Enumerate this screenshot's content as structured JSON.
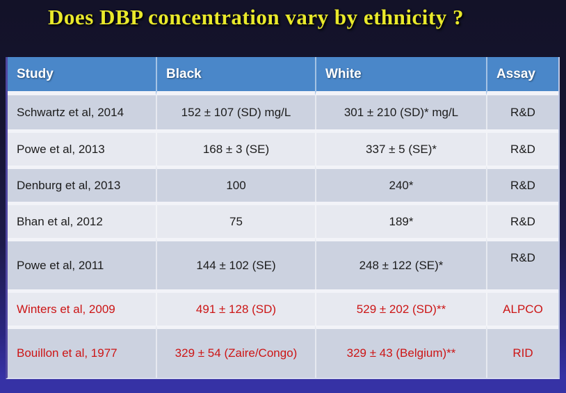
{
  "title": "Does DBP concentration vary by ethnicity ?",
  "table": {
    "headers": [
      "Study",
      "Black",
      "White",
      "Assay"
    ],
    "rows": [
      {
        "study": "Schwartz et al, 2014",
        "black": "152 ± 107 (SD) mg/L",
        "white": "301 ± 210 (SD)* mg/L",
        "assay": "R&D",
        "highlighted": false
      },
      {
        "study": "Powe et al, 2013",
        "black": "168 ± 3 (SE)",
        "white": "337 ± 5 (SE)*",
        "assay": "R&D",
        "highlighted": false
      },
      {
        "study": "Denburg et al, 2013",
        "black": "100",
        "white": "240*",
        "assay": "R&D",
        "highlighted": false
      },
      {
        "study": "Bhan et al, 2012",
        "black": "75",
        "white": "189*",
        "assay": "R&D",
        "highlighted": false
      },
      {
        "study": "Powe et al, 2011",
        "black": "144 ± 102 (SE)",
        "white": "248 ± 122 (SE)*",
        "assay": "R&D",
        "highlighted": false
      },
      {
        "study": "Winters et al, 2009",
        "black": "491 ± 128 (SD)",
        "white": "529 ± 202 (SD)**",
        "assay": "ALPCO",
        "highlighted": true
      },
      {
        "study": "Bouillon et al, 1977",
        "black": "329 ± 54 (Zaire/Congo)",
        "white": "329 ± 43 (Belgium)**",
        "assay": "RID",
        "highlighted": true
      }
    ]
  },
  "colors": {
    "header_bg": "#4a87c9",
    "row_dark": "#ccd2e0",
    "row_light": "#e7e9f0",
    "separator": "#f2f3f8",
    "body_text": "#1c1c1c",
    "highlight_text": "#cc1515",
    "title_text": "#e9e92b",
    "footer_strip": "#3632a5"
  }
}
